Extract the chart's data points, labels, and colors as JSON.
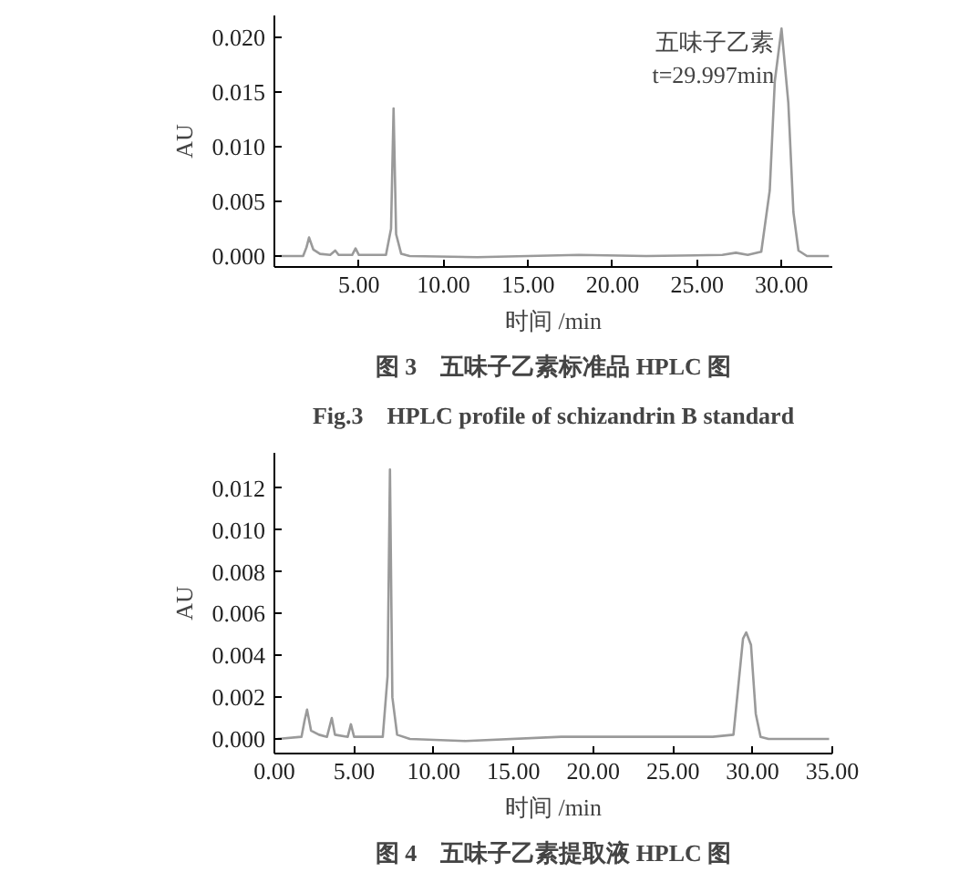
{
  "chart_data": [
    {
      "type": "line",
      "title": "图 3　五味子乙素标准品 HPLC 图",
      "subtitle": "Fig.3　HPLC profile of schizandrin B standard",
      "xlabel": "时间 /min",
      "ylabel": "AU",
      "annotations": [
        {
          "text": "五味子乙素\nt=29.997min",
          "x": 29.997,
          "y": 0.0208
        }
      ],
      "series": [
        {
          "color": "#9a9a9a",
          "x": [
            0.3,
            1.7,
            1.9,
            2.05,
            2.3,
            2.7,
            3.3,
            3.6,
            3.8,
            4.6,
            4.8,
            5.0,
            6.6,
            6.9,
            7.05,
            7.2,
            7.5,
            8,
            12,
            18,
            22,
            26.5,
            27.3,
            28,
            28.8,
            29.3,
            29.6,
            29.997,
            30.4,
            30.7,
            31.0,
            31.5,
            32.8
          ],
          "values": [
            0,
            0,
            0.0008,
            0.0017,
            0.0006,
            0.0002,
            0.0001,
            0.0005,
            0.0001,
            0.0001,
            0.0007,
            0.0001,
            0.0001,
            0.0025,
            0.0135,
            0.002,
            0.0002,
            0,
            -0.0001,
            0.0001,
            0,
            0.0001,
            0.0003,
            0.0001,
            0.0004,
            0.006,
            0.016,
            0.0208,
            0.014,
            0.004,
            0.0005,
            0,
            0
          ]
        }
      ],
      "xlim": [
        0,
        33
      ],
      "xticks": [
        {
          "value": 5,
          "label": "5.00"
        },
        {
          "value": 10,
          "label": "10.00"
        },
        {
          "value": 15,
          "label": "15.00"
        },
        {
          "value": 20,
          "label": "20.00"
        },
        {
          "value": 25,
          "label": "25.00"
        },
        {
          "value": 30,
          "label": "30.00"
        }
      ],
      "ylim": [
        -0.001,
        0.022
      ],
      "yticks": [
        {
          "value": 0,
          "label": "0.000"
        },
        {
          "value": 0.005,
          "label": "0.005"
        },
        {
          "value": 0.01,
          "label": "0.010"
        },
        {
          "value": 0.015,
          "label": "0.015"
        },
        {
          "value": 0.02,
          "label": "0.020"
        }
      ],
      "grid": false,
      "marker": "none",
      "line_style": "solid"
    },
    {
      "type": "line",
      "title": "图 4　五味子乙素提取液 HPLC 图",
      "xlabel": "时间 /min",
      "ylabel": "AU",
      "series": [
        {
          "color": "#9a9a9a",
          "x": [
            0.2,
            1.7,
            1.9,
            2.05,
            2.3,
            2.8,
            3.3,
            3.6,
            3.8,
            4.6,
            4.8,
            5.0,
            6.8,
            7.1,
            7.25,
            7.4,
            7.7,
            8.5,
            12,
            18,
            24.5,
            27.5,
            28.8,
            29.1,
            29.4,
            29.6,
            29.9,
            30.2,
            30.5,
            31,
            34.8
          ],
          "values": [
            0,
            0.0001,
            0.0009,
            0.0014,
            0.0004,
            0.0002,
            0.0001,
            0.001,
            0.0002,
            0.0001,
            0.0007,
            0.0001,
            0.0001,
            0.003,
            0.0129,
            0.002,
            0.0002,
            0,
            -0.0001,
            0.0001,
            0.0001,
            0.0001,
            0.0002,
            0.0025,
            0.0048,
            0.0051,
            0.0045,
            0.0012,
            0.0001,
            0,
            0
          ]
        }
      ],
      "xlim": [
        0,
        35
      ],
      "xticks": [
        {
          "value": 0,
          "label": "0.00"
        },
        {
          "value": 5,
          "label": "5.00"
        },
        {
          "value": 10,
          "label": "10.00"
        },
        {
          "value": 15,
          "label": "15.00"
        },
        {
          "value": 20,
          "label": "20.00"
        },
        {
          "value": 25,
          "label": "25.00"
        },
        {
          "value": 30,
          "label": "30.00"
        },
        {
          "value": 35,
          "label": "35.00"
        }
      ],
      "ylim": [
        -0.0007,
        0.0137
      ],
      "yticks": [
        {
          "value": 0,
          "label": "0.000"
        },
        {
          "value": 0.002,
          "label": "0.002"
        },
        {
          "value": 0.004,
          "label": "0.004"
        },
        {
          "value": 0.006,
          "label": "0.006"
        },
        {
          "value": 0.008,
          "label": "0.008"
        },
        {
          "value": 0.01,
          "label": "0.010"
        },
        {
          "value": 0.012,
          "label": "0.012"
        }
      ],
      "grid": false,
      "marker": "none",
      "line_style": "solid"
    }
  ]
}
